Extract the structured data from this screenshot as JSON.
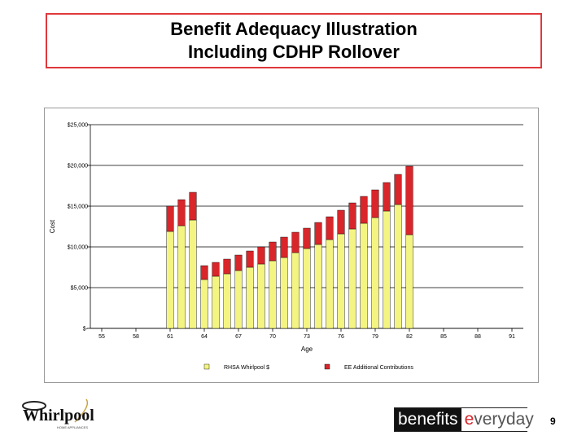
{
  "slide": {
    "title_line1": "Benefit Adequacy Illustration",
    "title_line2": "Including CDHP Rollover",
    "page_number": "9",
    "brand_left": "benefits",
    "brand_e": "e",
    "brand_rest": "veryday",
    "logo_text": "Whirlpool",
    "logo_subtext": "HOME APPLIANCES",
    "colors": {
      "title_border": "#e0383c",
      "series1": "#f4f482",
      "series2": "#d8262a"
    }
  },
  "chart_data": {
    "type": "bar",
    "stacked": true,
    "title": "",
    "xlabel": "Age",
    "ylabel": "Cost",
    "ylim": [
      0,
      25000
    ],
    "xlim": [
      54,
      92
    ],
    "x_ticks": [
      55,
      58,
      61,
      64,
      67,
      70,
      73,
      76,
      79,
      82,
      85,
      88,
      91
    ],
    "y_ticks": [
      0,
      5000,
      10000,
      15000,
      20000,
      25000
    ],
    "y_tick_labels": [
      "$-",
      "$5,000",
      "$10,000",
      "$15,000",
      "$20,000",
      "$25,000"
    ],
    "grid": true,
    "legend_position": "bottom",
    "x": [
      61,
      62,
      63,
      64,
      65,
      66,
      67,
      68,
      69,
      70,
      71,
      72,
      73,
      74,
      75,
      76,
      77,
      78,
      79,
      80,
      81,
      82,
      83
    ],
    "series": [
      {
        "name": "RHSA Whirlpool $",
        "color": "#f4f482",
        "values": [
          11900,
          12600,
          13300,
          6000,
          6400,
          6700,
          7100,
          7500,
          7900,
          8300,
          8700,
          9300,
          9800,
          10300,
          10900,
          11600,
          12200,
          12900,
          13600,
          14400,
          15200,
          11500,
          0
        ]
      },
      {
        "name": "EE Additional Contributions",
        "color": "#d8262a",
        "values": [
          3100,
          3200,
          3400,
          1700,
          1700,
          1800,
          1900,
          2000,
          2100,
          2300,
          2500,
          2500,
          2500,
          2700,
          2800,
          2900,
          3200,
          3300,
          3400,
          3500,
          3700,
          8400,
          0
        ]
      }
    ]
  }
}
